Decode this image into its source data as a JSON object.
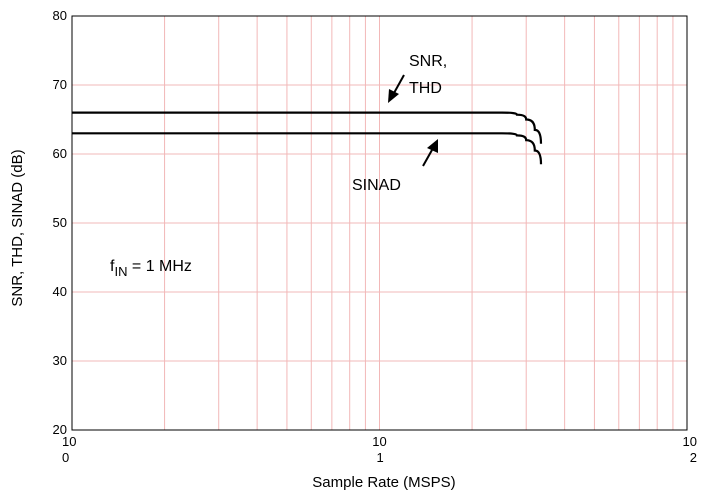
{
  "chart_data": {
    "type": "line",
    "xlabel": "Sample Rate (MSPS)",
    "ylabel": "SNR, THD, SINAD (dB)",
    "xscale": "log",
    "xlim": [
      1,
      100
    ],
    "ylim": [
      20,
      80
    ],
    "grid": true,
    "x_ticks": [
      {
        "base": "10",
        "exp": "0"
      },
      {
        "base": "10",
        "exp": "1"
      },
      {
        "base": "10",
        "exp": "2"
      }
    ],
    "y_ticks": [
      "20",
      "30",
      "40",
      "50",
      "60",
      "70",
      "80"
    ],
    "series": [
      {
        "name": "SNR, THD",
        "x": [
          1,
          10,
          20,
          25,
          28,
          30,
          32,
          33.5
        ],
        "y": [
          66,
          66,
          66,
          66,
          65.7,
          65,
          63.5,
          61.5
        ]
      },
      {
        "name": "SINAD",
        "x": [
          1,
          10,
          20,
          25,
          28,
          30,
          32,
          33.5
        ],
        "y": [
          63,
          63,
          63,
          63,
          62.7,
          62,
          60.5,
          58.5
        ]
      }
    ],
    "annotations": [
      {
        "id": "snr",
        "lines": [
          "SNR,",
          "THD"
        ]
      },
      {
        "id": "sinad",
        "lines": [
          "SINAD"
        ]
      },
      {
        "id": "fin",
        "main": "f",
        "sub": "IN",
        "rest": " = 1 MHz"
      }
    ]
  }
}
